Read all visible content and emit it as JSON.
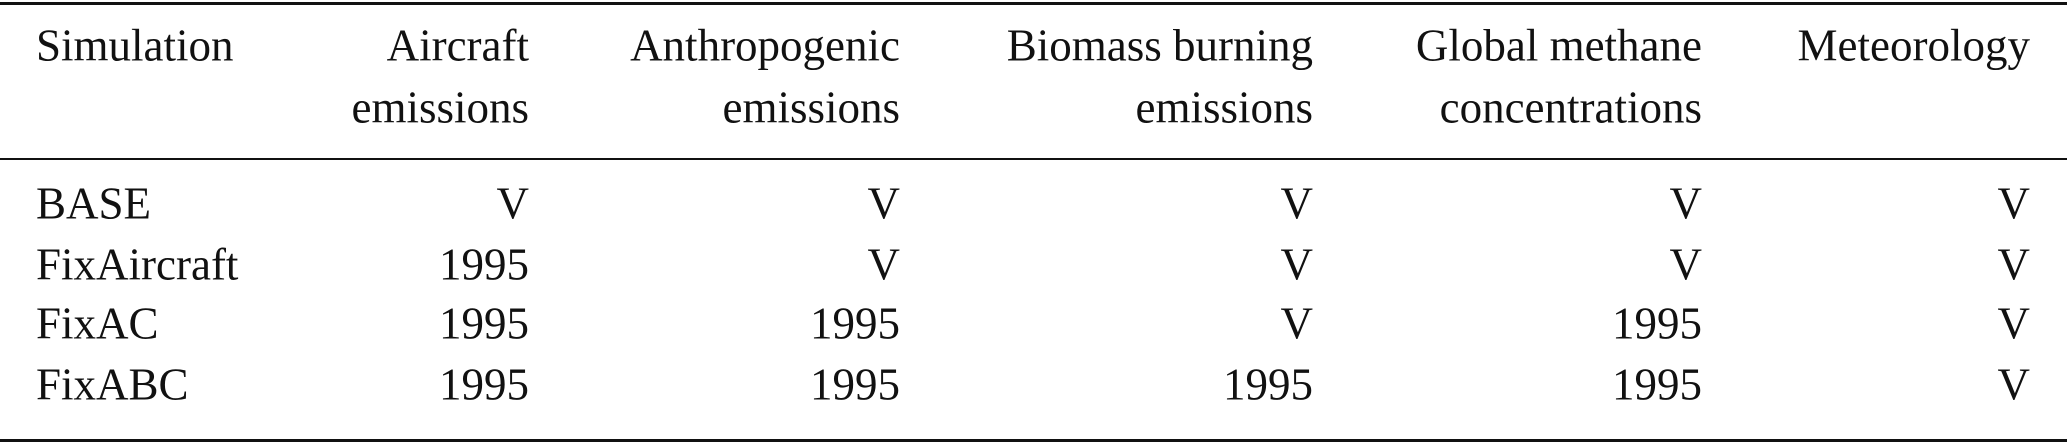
{
  "table": {
    "headers": [
      [
        "Simulation"
      ],
      [
        "Aircraft",
        "emissions"
      ],
      [
        "Anthropogenic",
        "emissions"
      ],
      [
        "Biomass burning",
        "emissions"
      ],
      [
        "Global methane",
        "concentrations"
      ],
      [
        "Meteorology"
      ]
    ],
    "rows": [
      [
        "BASE",
        "V",
        "V",
        "V",
        "V",
        "V"
      ],
      [
        "FixAircraft",
        1995,
        "V",
        "V",
        "V",
        "V"
      ],
      [
        "FixAC",
        1995,
        1995,
        "V",
        1995,
        "V"
      ],
      [
        "FixABC",
        1995,
        1995,
        1995,
        1995,
        "V"
      ]
    ]
  }
}
